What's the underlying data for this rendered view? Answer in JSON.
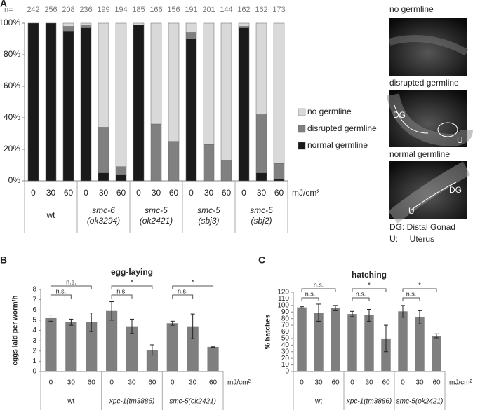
{
  "panel_labels": [
    "A",
    "B",
    "C"
  ],
  "chart_data": [
    {
      "type": "stacked_bar",
      "n_label": "n=",
      "n": [
        242,
        256,
        208,
        236,
        199,
        194,
        185,
        166,
        156,
        191,
        201,
        144,
        162,
        162,
        173
      ],
      "categories": [
        "0",
        "30",
        "60",
        "0",
        "30",
        "60",
        "0",
        "30",
        "60",
        "0",
        "30",
        "60",
        "0",
        "30",
        "60"
      ],
      "groups": [
        [
          "wt"
        ],
        [
          "smc-6",
          "(ok3294)"
        ],
        [
          "smc-5",
          "(ok2421)"
        ],
        [
          "smc-5",
          "(sbj3)"
        ],
        [
          "smc-5",
          "(sbj2)"
        ]
      ],
      "unit_label": "mJ/cm²",
      "series": [
        {
          "name": "no germline",
          "color": "#d9d9d9",
          "values": [
            0,
            0,
            2,
            1,
            66,
            91,
            1,
            64,
            75,
            6,
            77,
            87,
            2,
            58,
            89
          ]
        },
        {
          "name": "disrupted germline",
          "color": "#808080",
          "values": [
            0,
            0,
            3,
            2,
            29,
            5,
            0,
            36,
            25,
            4,
            23,
            13,
            1,
            37,
            10
          ]
        },
        {
          "name": "normal germline",
          "color": "#1a1a1a",
          "values": [
            100,
            100,
            95,
            97,
            5,
            4,
            99,
            0,
            0,
            90,
            0,
            0,
            97,
            5,
            1
          ]
        }
      ],
      "ylim": [
        0,
        100
      ],
      "yticks": [
        {
          "value": 0,
          "label": "0%"
        },
        {
          "value": 20,
          "label": "20%"
        },
        {
          "value": 40,
          "label": "40%"
        },
        {
          "value": 60,
          "label": "60%"
        },
        {
          "value": 80,
          "label": "80%"
        },
        {
          "value": 100,
          "label": "100%"
        }
      ]
    },
    {
      "type": "bar",
      "title": "egg-laying",
      "ylabel": "eggs laid per worm/h",
      "categories": [
        "0",
        "30",
        "60",
        "0",
        "30",
        "60",
        "0",
        "30",
        "60"
      ],
      "groups": [
        [
          "wt"
        ],
        [
          "xpc-1(tm3886)"
        ],
        [
          "smc-5(ok2421)"
        ]
      ],
      "unit_label": "mJ/cm²",
      "values": [
        5.2,
        4.8,
        4.8,
        5.9,
        4.4,
        2.1,
        4.7,
        4.4,
        2.4
      ],
      "errors": [
        0.3,
        0.3,
        0.9,
        0.9,
        0.7,
        0.5,
        0.2,
        1.2,
        0.05
      ],
      "color": "#7f7f7f",
      "ylim": [
        0,
        8
      ],
      "yticks": [
        0,
        1,
        2,
        3,
        4,
        5,
        6,
        7,
        8
      ],
      "significance": [
        "n.s.",
        "n.s.",
        "n.s.",
        "*",
        "n.s.",
        "*"
      ]
    },
    {
      "type": "bar",
      "title": "hatching",
      "ylabel": "% hatches",
      "categories": [
        "0",
        "30",
        "60",
        "0",
        "30",
        "60",
        "0",
        "30",
        "60"
      ],
      "groups": [
        [
          "wt"
        ],
        [
          "xpc-1(tm3886)"
        ],
        [
          "smc-5(ok2421)"
        ]
      ],
      "unit_label": "mJ/cm²",
      "values": [
        97,
        89,
        96,
        87,
        85,
        50,
        91,
        82,
        54
      ],
      "errors": [
        1,
        13,
        4,
        4,
        9,
        20,
        9,
        10,
        3
      ],
      "color": "#7f7f7f",
      "ylim": [
        0,
        120
      ],
      "yticks": [
        0,
        10,
        20,
        30,
        40,
        50,
        60,
        70,
        80,
        90,
        100,
        110,
        120
      ],
      "significance": [
        "n.s.",
        "n.s.",
        "n.s.",
        "*",
        "n.s.",
        "*"
      ]
    }
  ],
  "micrographs": {
    "panels": [
      {
        "label": "no germline",
        "annotations": []
      },
      {
        "label": "disrupted germline",
        "annotations": [
          "DG",
          "U"
        ]
      },
      {
        "label": "normal germline",
        "annotations": [
          "DG",
          "U"
        ]
      }
    ],
    "key": [
      "DG: Distal Gonad",
      "U:     Uterus"
    ]
  }
}
